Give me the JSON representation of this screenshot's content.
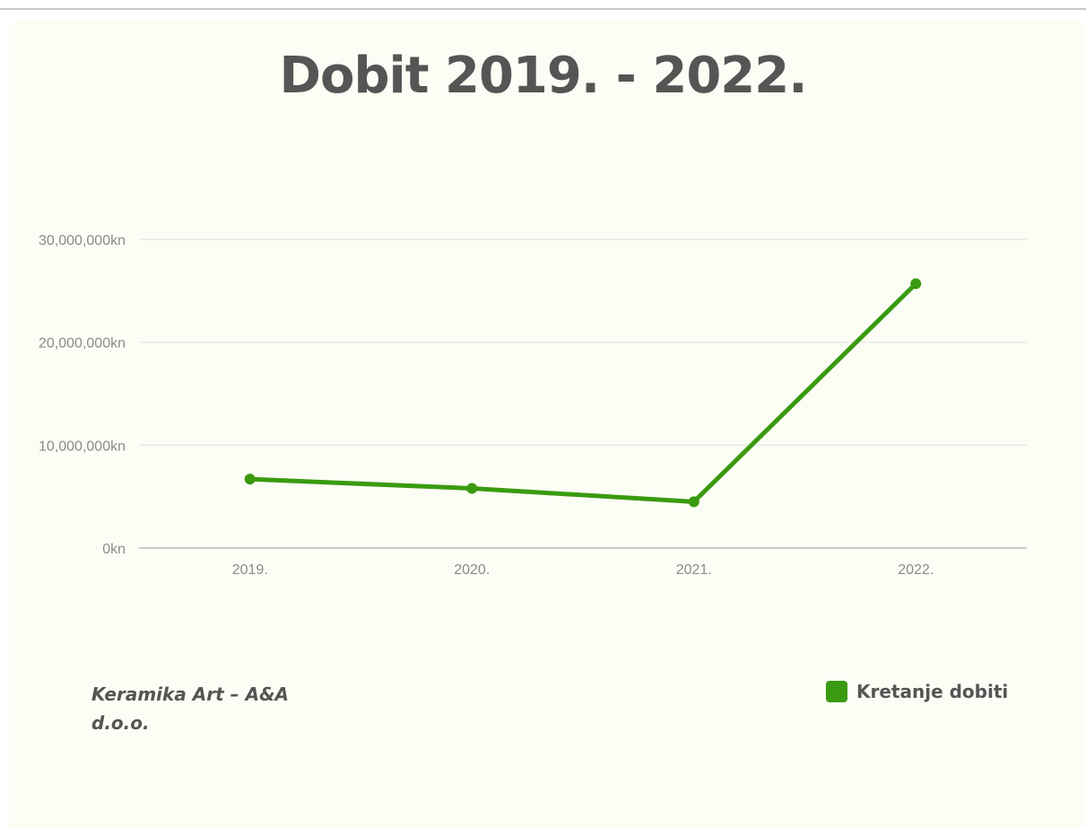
{
  "colors": {
    "series": "#3a9a10",
    "background": "#fcfdf4",
    "title": "#555555"
  },
  "footer": {
    "company": "Keramika Art – A&A d.o.o."
  },
  "chart_data": {
    "type": "line",
    "title": "Dobit 2019. - 2022.",
    "xlabel": "",
    "ylabel": "",
    "categories": [
      "2019.",
      "2020.",
      "2021.",
      "2022."
    ],
    "series": [
      {
        "name": "Kretanje dobiti",
        "color": "#3a9a10",
        "values": [
          6700000,
          5800000,
          4500000,
          25700000
        ]
      }
    ],
    "ylim": [
      0,
      30000000
    ],
    "y_ticks": [
      0,
      10000000,
      20000000,
      30000000
    ],
    "y_tick_labels": [
      "0kn",
      "10,000,000kn",
      "20,000,000kn",
      "30,000,000kn"
    ],
    "grid": true,
    "legend_position": "bottom-right"
  }
}
